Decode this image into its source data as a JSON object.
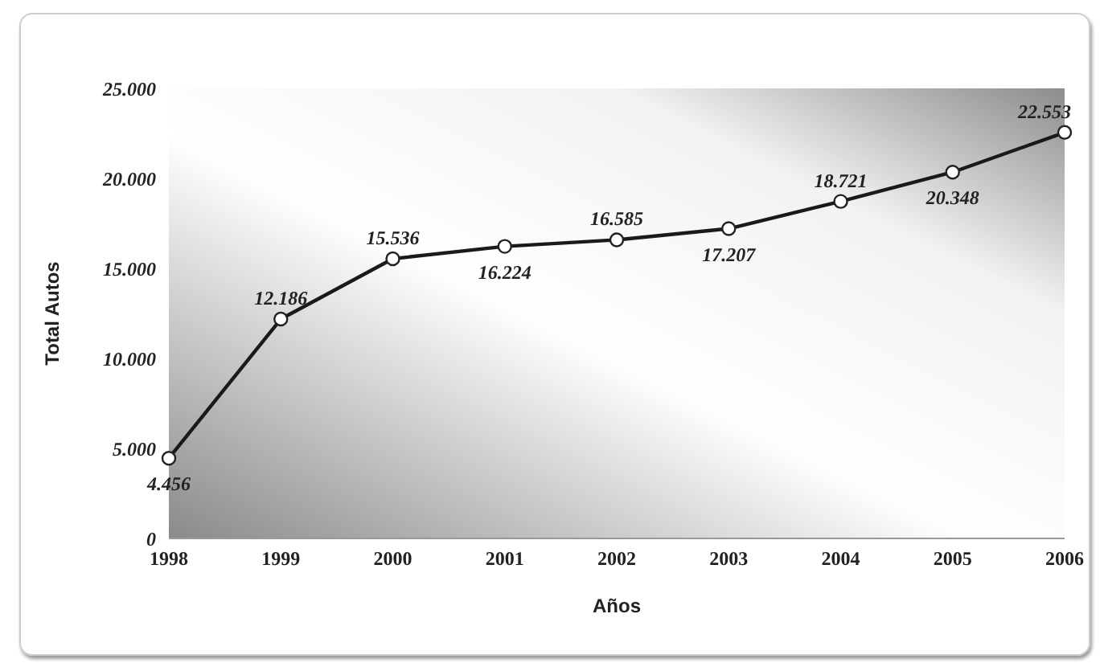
{
  "chart_data": {
    "type": "line",
    "xlabel": "Años",
    "ylabel": "Total Autos",
    "categories": [
      "1998",
      "1999",
      "2000",
      "2001",
      "2002",
      "2003",
      "2004",
      "2005",
      "2006"
    ],
    "series": [
      {
        "color": "#1a1a1a",
        "values": [
          4456,
          12186,
          15536,
          16224,
          16585,
          17207,
          18721,
          20348,
          22553
        ],
        "value_labels": [
          "4.456",
          "12.186",
          "15.536",
          "16.224",
          "16.585",
          "17.207",
          "18.721",
          "20.348",
          "22.553"
        ]
      }
    ],
    "ylim": [
      0,
      25000
    ],
    "yticks": [
      {
        "value": 0,
        "label": "0"
      },
      {
        "value": 5000,
        "label": "5.000"
      },
      {
        "value": 10000,
        "label": "10.000"
      },
      {
        "value": 15000,
        "label": "15.000"
      },
      {
        "value": 20000,
        "label": "20.000"
      },
      {
        "value": 25000,
        "label": "25.000"
      }
    ],
    "marker": "circle",
    "line_style": "solid",
    "grid": false,
    "legend": false
  }
}
